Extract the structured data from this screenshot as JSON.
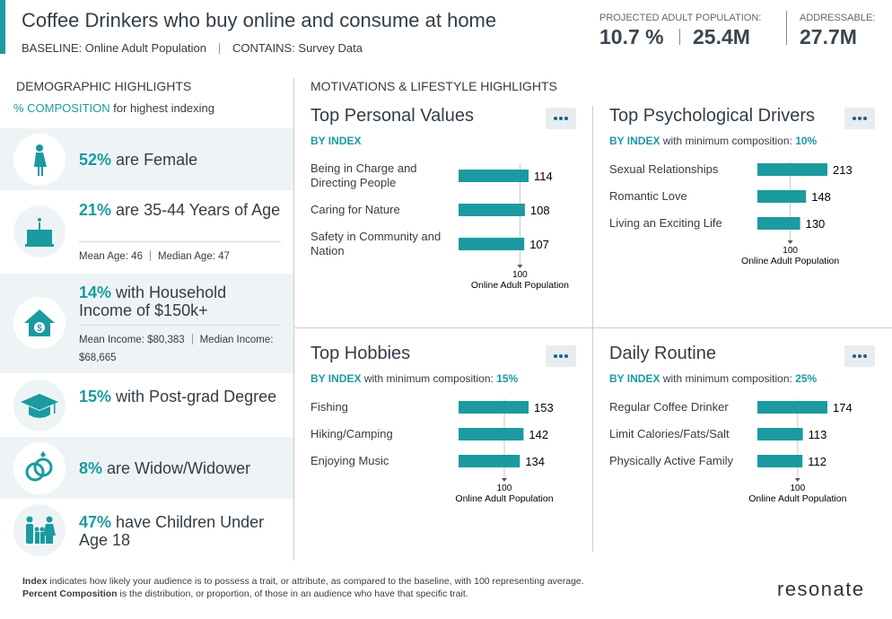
{
  "header": {
    "title": "Coffee Drinkers who buy online and consume at home",
    "baseline": "BASELINE: Online Adult Population",
    "contains": "CONTAINS: Survey Data",
    "projected_label": "PROJECTED ADULT POPULATION:",
    "projected_percent": "10.7 %",
    "projected_count": "25.4M",
    "addressable_label": "ADDRESSABLE:",
    "addressable_count": "27.7M"
  },
  "demographics": {
    "title": "DEMOGRAPHIC HIGHLIGHTS",
    "subtitle_highlight": "% COMPOSITION",
    "subtitle": "for highest indexing",
    "items": [
      {
        "percent": "52%",
        "text": "are Female"
      },
      {
        "percent": "21%",
        "text": "are 35-44 Years of Age",
        "details": [
          "Mean Age: 46",
          "Median Age: 47"
        ]
      },
      {
        "percent": "14%",
        "text": "with Household Income of $150k+",
        "details": [
          "Mean Income: $80,383",
          "Median Income: $68,665"
        ]
      },
      {
        "percent": "15%",
        "text": "with Post-grad Degree"
      },
      {
        "percent": "8%",
        "text": "are Widow/Widower"
      },
      {
        "percent": "47%",
        "text": "have Children Under Age 18"
      }
    ]
  },
  "motivations": {
    "title": "MOTIVATIONS & LIFESTYLE HIGHLIGHTS",
    "panels": [
      {
        "title": "Top Personal Values",
        "by": "BY INDEX",
        "categories": [
          "Being in Charge and Directing People",
          "Caring for Nature",
          "Safety in Community and Nation"
        ],
        "values": [
          114,
          108,
          107
        ],
        "baseline_value": 100,
        "baseline_label": "Online Adult Population"
      },
      {
        "title": "Top Psychological Drivers",
        "by": "BY INDEX",
        "min_label": "with minimum composition:",
        "min_value": "10%",
        "categories": [
          "Sexual Relationships",
          "Romantic Love",
          "Living an Exciting Life"
        ],
        "values": [
          213,
          148,
          130
        ],
        "baseline_value": 100,
        "baseline_label": "Online Adult Population"
      },
      {
        "title": "Top Hobbies",
        "by": "BY INDEX",
        "min_label": "with minimum composition:",
        "min_value": "15%",
        "categories": [
          "Fishing",
          "Hiking/Camping",
          "Enjoying Music"
        ],
        "values": [
          153,
          142,
          134
        ],
        "baseline_value": 100,
        "baseline_label": "Online Adult Population"
      },
      {
        "title": "Daily Routine",
        "by": "BY INDEX",
        "min_label": "with minimum composition:",
        "min_value": "25%",
        "categories": [
          "Regular Coffee Drinker",
          "Limit Calories/Fats/Salt",
          "Physically Active Family"
        ],
        "values": [
          174,
          113,
          112
        ],
        "baseline_value": 100,
        "baseline_label": "Online Adult Population"
      }
    ],
    "color": "#1b9aa0"
  },
  "footer": {
    "notes": [
      {
        "term": "Index",
        "text": "indicates how likely your audience is to possess a trait, or attribute, as compared to the baseline, with 100 representing average."
      },
      {
        "term": "Percent Composition",
        "text": "is the distribution, or proportion, of those in an audience who have that specific trait."
      }
    ],
    "logo": "resonate"
  }
}
